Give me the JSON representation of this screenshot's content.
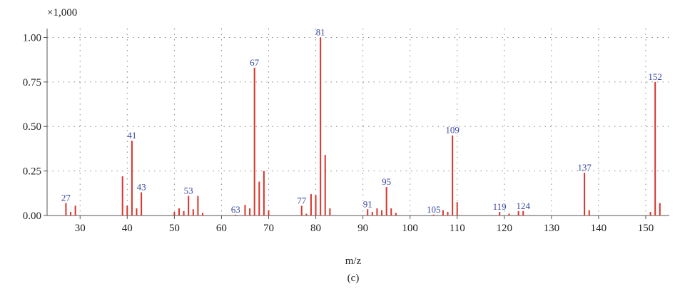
{
  "chart_data": {
    "type": "bar",
    "scale_label": "×1,000",
    "xlabel": "m/z",
    "ylabel": "",
    "caption": "(c)",
    "xlim": [
      23,
      155
    ],
    "ylim": [
      0,
      1.05
    ],
    "xticks": [
      30,
      40,
      50,
      60,
      70,
      80,
      90,
      100,
      110,
      120,
      130,
      140,
      150
    ],
    "yticks": [
      0.0,
      0.25,
      0.5,
      0.75,
      1.0
    ],
    "ytick_labels": [
      "0.00",
      "0.25",
      "0.50",
      "0.75",
      "1.00"
    ],
    "grid": true,
    "peak_color": "#d9342b",
    "label_color": "#3a4aa0",
    "peaks": [
      {
        "mz": 27,
        "y": 0.07,
        "label": "27"
      },
      {
        "mz": 28,
        "y": 0.02
      },
      {
        "mz": 29,
        "y": 0.055
      },
      {
        "mz": 39,
        "y": 0.22
      },
      {
        "mz": 40,
        "y": 0.055
      },
      {
        "mz": 41,
        "y": 0.42,
        "label": "41"
      },
      {
        "mz": 42,
        "y": 0.04
      },
      {
        "mz": 43,
        "y": 0.13,
        "label": "43"
      },
      {
        "mz": 50,
        "y": 0.02
      },
      {
        "mz": 51,
        "y": 0.04
      },
      {
        "mz": 52,
        "y": 0.025
      },
      {
        "mz": 53,
        "y": 0.11,
        "label": "53"
      },
      {
        "mz": 54,
        "y": 0.035
      },
      {
        "mz": 55,
        "y": 0.11
      },
      {
        "mz": 56,
        "y": 0.015
      },
      {
        "mz": 63,
        "y": 0.005,
        "label": "63"
      },
      {
        "mz": 65,
        "y": 0.06
      },
      {
        "mz": 66,
        "y": 0.04
      },
      {
        "mz": 67,
        "y": 0.83,
        "label": "67"
      },
      {
        "mz": 68,
        "y": 0.19
      },
      {
        "mz": 69,
        "y": 0.25
      },
      {
        "mz": 70,
        "y": 0.03
      },
      {
        "mz": 77,
        "y": 0.055,
        "label": "77"
      },
      {
        "mz": 78,
        "y": 0.01
      },
      {
        "mz": 79,
        "y": 0.12
      },
      {
        "mz": 80,
        "y": 0.115
      },
      {
        "mz": 81,
        "y": 1.0,
        "label": "81"
      },
      {
        "mz": 82,
        "y": 0.34
      },
      {
        "mz": 83,
        "y": 0.04
      },
      {
        "mz": 91,
        "y": 0.035,
        "label": "91"
      },
      {
        "mz": 92,
        "y": 0.02
      },
      {
        "mz": 93,
        "y": 0.04
      },
      {
        "mz": 94,
        "y": 0.03
      },
      {
        "mz": 95,
        "y": 0.16,
        "label": "95"
      },
      {
        "mz": 96,
        "y": 0.04
      },
      {
        "mz": 97,
        "y": 0.015
      },
      {
        "mz": 105,
        "y": 0.005,
        "label": "105"
      },
      {
        "mz": 107,
        "y": 0.03
      },
      {
        "mz": 108,
        "y": 0.02
      },
      {
        "mz": 109,
        "y": 0.45,
        "label": "109"
      },
      {
        "mz": 110,
        "y": 0.075
      },
      {
        "mz": 119,
        "y": 0.02,
        "label": "119"
      },
      {
        "mz": 121,
        "y": 0.01
      },
      {
        "mz": 123,
        "y": 0.025
      },
      {
        "mz": 124,
        "y": 0.025,
        "label": "124"
      },
      {
        "mz": 137,
        "y": 0.24,
        "label": "137"
      },
      {
        "mz": 138,
        "y": 0.03
      },
      {
        "mz": 151,
        "y": 0.02
      },
      {
        "mz": 152,
        "y": 0.75,
        "label": "152"
      },
      {
        "mz": 153,
        "y": 0.07
      }
    ]
  }
}
